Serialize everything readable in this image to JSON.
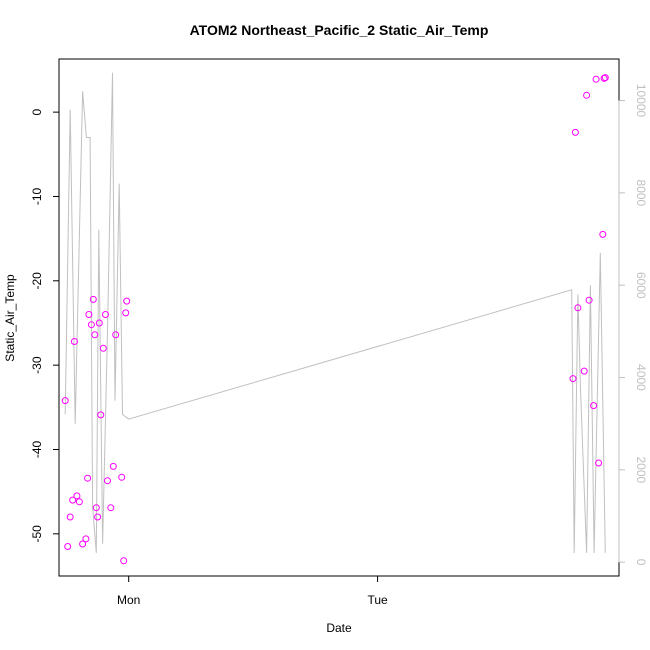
{
  "chart_data": {
    "type": "scatter",
    "title": "ATOM2 Northeast_Pacific_2 Static_Air_Temp",
    "xlabel": "Date",
    "ylabel": "Static_Air_Temp",
    "xlim": [
      -0.28,
      1.97
    ],
    "ylim": [
      -55,
      6.3
    ],
    "y2lim": [
      -300,
      10900
    ],
    "x_ticks": [
      {
        "value": 0,
        "label": "Mon"
      },
      {
        "value": 1,
        "label": "Tue"
      }
    ],
    "y_ticks": [
      0,
      -10,
      -20,
      -30,
      -40,
      -50
    ],
    "y2_ticks": [
      0,
      2000,
      4000,
      6000,
      8000,
      10000
    ],
    "point_color": "#ff00ff",
    "line_color": "#c0c0c0",
    "grid": false,
    "legend": "none",
    "series": [
      {
        "type": "scatter",
        "axis": "left",
        "points": [
          [
            -0.255,
            -34.2
          ],
          [
            -0.245,
            -51.5
          ],
          [
            -0.235,
            -48.0
          ],
          [
            -0.225,
            -46.0
          ],
          [
            -0.218,
            -27.2
          ],
          [
            -0.208,
            -45.5
          ],
          [
            -0.198,
            -46.2
          ],
          [
            -0.185,
            -51.2
          ],
          [
            -0.172,
            -50.6
          ],
          [
            -0.165,
            -43.4
          ],
          [
            -0.16,
            -24.0
          ],
          [
            -0.15,
            -25.2
          ],
          [
            -0.142,
            -22.2
          ],
          [
            -0.136,
            -26.4
          ],
          [
            -0.13,
            -46.9
          ],
          [
            -0.125,
            -48.0
          ],
          [
            -0.118,
            -25.0
          ],
          [
            -0.112,
            -35.9
          ],
          [
            -0.102,
            -28.0
          ],
          [
            -0.093,
            -24.0
          ],
          [
            -0.085,
            -43.7
          ],
          [
            -0.072,
            -46.9
          ],
          [
            -0.062,
            -42.0
          ],
          [
            -0.052,
            -26.4
          ],
          [
            -0.028,
            -43.3
          ],
          [
            -0.02,
            -53.2
          ],
          [
            -0.012,
            -23.8
          ],
          [
            -0.008,
            -22.4
          ],
          [
            1.785,
            -31.6
          ],
          [
            1.795,
            -2.4
          ],
          [
            1.805,
            -23.2
          ],
          [
            1.83,
            -30.7
          ],
          [
            1.84,
            2.0
          ],
          [
            1.85,
            -22.3
          ],
          [
            1.868,
            -34.8
          ],
          [
            1.878,
            3.9
          ],
          [
            1.888,
            -41.6
          ],
          [
            1.905,
            -14.5
          ],
          [
            1.91,
            4.0
          ],
          [
            1.915,
            4.1
          ]
        ]
      },
      {
        "type": "line",
        "axis": "right",
        "points": [
          [
            -0.255,
            3200
          ],
          [
            -0.235,
            9800
          ],
          [
            -0.215,
            3000
          ],
          [
            -0.185,
            10200
          ],
          [
            -0.17,
            9200
          ],
          [
            -0.155,
            9200
          ],
          [
            -0.145,
            1200
          ],
          [
            -0.13,
            200
          ],
          [
            -0.12,
            7200
          ],
          [
            -0.105,
            400
          ],
          [
            -0.085,
            5000
          ],
          [
            -0.065,
            10600
          ],
          [
            -0.055,
            3500
          ],
          [
            -0.038,
            8200
          ],
          [
            -0.025,
            3200
          ],
          [
            0.0,
            3100
          ],
          [
            1.78,
            5900
          ],
          [
            1.79,
            200
          ],
          [
            1.805,
            5800
          ],
          [
            1.815,
            3800
          ],
          [
            1.84,
            200
          ],
          [
            1.855,
            6000
          ],
          [
            1.87,
            200
          ],
          [
            1.895,
            6700
          ],
          [
            1.915,
            200
          ]
        ]
      }
    ]
  }
}
